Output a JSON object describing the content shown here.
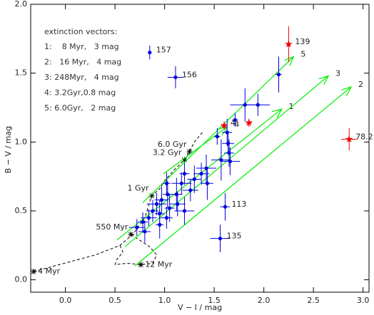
{
  "chart_data": {
    "type": "scatter",
    "xlabel": "V − I / mag",
    "ylabel": "B − V / mag",
    "xlim": [
      -0.35,
      3.06
    ],
    "ylim": [
      -0.09,
      2.0
    ],
    "xticks": [
      {
        "value": 0,
        "label": "0.0"
      },
      0.5,
      {
        "value": 1,
        "label": "1.0"
      },
      1.5,
      {
        "value": 2,
        "label": "2.0"
      },
      2.5,
      {
        "value": 3,
        "label": "3.0"
      }
    ],
    "yticks": [
      {
        "value": 0,
        "label": "0.0"
      },
      0.5,
      {
        "value": 1,
        "label": "1.0"
      },
      1.5,
      {
        "value": 2,
        "label": "2.0"
      }
    ],
    "legend_title": "extinction vectors:",
    "legend_rows": [
      "1:    8 Myr,   3 mag",
      "2:   16 Myr,   4 mag",
      "3: 248Myr,   4 mag",
      "4: 3.2Gyr,0.8 mag",
      "5: 6.0Gyr,   2 mag"
    ],
    "series": [
      {
        "color": "#0000dd",
        "marker": "circle",
        "x": [
          0.85,
          1.11,
          2.15,
          1.81,
          1.94,
          1.71,
          1.63,
          1.53,
          1.64,
          1.65,
          1.66,
          1.57,
          1.42,
          1.37,
          1.3,
          1.43,
          1.2,
          1.17,
          1.26,
          1.12,
          1.02,
          1.03,
          0.97,
          0.92,
          1.05,
          1.13,
          1.2,
          0.88,
          0.95,
          1.02,
          0.84,
          0.78,
          0.72,
          0.8,
          0.95,
          1.61,
          1.56
        ],
        "values": [
          1.65,
          1.47,
          1.49,
          1.27,
          1.27,
          1.16,
          1.07,
          1.04,
          0.99,
          0.92,
          0.86,
          0.87,
          0.81,
          0.77,
          0.73,
          0.7,
          0.77,
          0.7,
          0.65,
          0.62,
          0.7,
          0.62,
          0.58,
          0.55,
          0.52,
          0.55,
          0.5,
          0.5,
          0.48,
          0.45,
          0.45,
          0.42,
          0.38,
          0.35,
          0.4,
          0.53,
          0.3
        ],
        "xerr": [
          0.02,
          0.08,
          0.03,
          0.15,
          0.12,
          0.03,
          0.05,
          0.03,
          0.06,
          0.05,
          0.1,
          0.1,
          0.1,
          0.08,
          0.07,
          0.06,
          0.05,
          0.1,
          0.08,
          0.06,
          0.04,
          0.05,
          0.07,
          0.1,
          0.05,
          0.08,
          0.1,
          0.06,
          0.05,
          0.06,
          0.08,
          0.05,
          0.08,
          0.06,
          0.04,
          0.05,
          0.1
        ],
        "yerr": [
          0.05,
          0.08,
          0.13,
          0.12,
          0.08,
          0.05,
          0.1,
          0.06,
          0.08,
          0.1,
          0.1,
          0.15,
          0.1,
          0.08,
          0.1,
          0.12,
          0.08,
          0.08,
          0.08,
          0.12,
          0.08,
          0.1,
          0.1,
          0.08,
          0.1,
          0.09,
          0.1,
          0.08,
          0.1,
          0.08,
          0.06,
          0.07,
          0.06,
          0.08,
          0.1,
          0.1,
          0.1
        ],
        "labels": [
          "157",
          "156",
          null,
          null,
          null,
          null,
          null,
          null,
          null,
          null,
          null,
          null,
          null,
          null,
          null,
          null,
          null,
          null,
          null,
          null,
          null,
          null,
          null,
          null,
          null,
          null,
          null,
          null,
          null,
          null,
          null,
          null,
          null,
          null,
          null,
          "113",
          "135"
        ]
      },
      {
        "color": "#ee0000",
        "marker": "star",
        "x": [
          2.25,
          1.6,
          1.85,
          2.86
        ],
        "values": [
          1.71,
          1.12,
          1.14,
          1.02
        ],
        "xerr": [
          0.02,
          0.03,
          0.03,
          0.08
        ],
        "yerr": [
          0.13,
          0.03,
          0.03,
          0.08
        ],
        "labels": [
          "139",
          "4",
          null,
          "78.2"
        ]
      }
    ],
    "track": {
      "x": [
        -0.32,
        0.3,
        0.55,
        0.68,
        0.8,
        0.87,
        0.95,
        1.0,
        1.1,
        1.2,
        1.25,
        1.3,
        1.38
      ],
      "y": [
        0.06,
        0.18,
        0.25,
        0.33,
        0.45,
        0.61,
        0.66,
        0.72,
        0.8,
        0.87,
        0.93,
        1.0,
        1.07
      ]
    },
    "track_loop": {
      "x": [
        0.55,
        0.58,
        0.52,
        0.5,
        0.62,
        0.76,
        0.88,
        0.92,
        0.85,
        0.72,
        0.68
      ],
      "y": [
        0.25,
        0.2,
        0.15,
        0.11,
        0.12,
        0.11,
        0.12,
        0.18,
        0.24,
        0.3,
        0.33
      ]
    },
    "track_labels": [
      {
        "text": "4 Myr",
        "x": -0.32,
        "y": 0.06
      },
      {
        "text": "12 Myr",
        "x": 0.76,
        "y": 0.11
      },
      {
        "text": "550 Myr",
        "x": 0.66,
        "y": 0.33
      },
      {
        "text": "1 Gyr",
        "x": 0.87,
        "y": 0.61
      },
      {
        "text": "3.2 Gyr",
        "x": 1.2,
        "y": 0.87
      },
      {
        "text": "6.0 Gyr",
        "x": 1.25,
        "y": 0.93
      }
    ],
    "vector_color": "#00ee00",
    "vectors": [
      {
        "label": "1",
        "x": [
          0.52,
          2.18
        ],
        "y": [
          0.29,
          1.24
        ]
      },
      {
        "label": "2",
        "x": [
          0.7,
          2.88
        ],
        "y": [
          0.1,
          1.4
        ]
      },
      {
        "label": "3",
        "x": [
          0.6,
          2.65
        ],
        "y": [
          0.24,
          1.48
        ]
      },
      {
        "label": "4",
        "x": [
          0.99,
          1.63
        ],
        "y": [
          0.77,
          1.11
        ]
      },
      {
        "label": "5",
        "x": [
          0.78,
          2.3
        ],
        "y": [
          0.56,
          1.62
        ]
      }
    ]
  }
}
